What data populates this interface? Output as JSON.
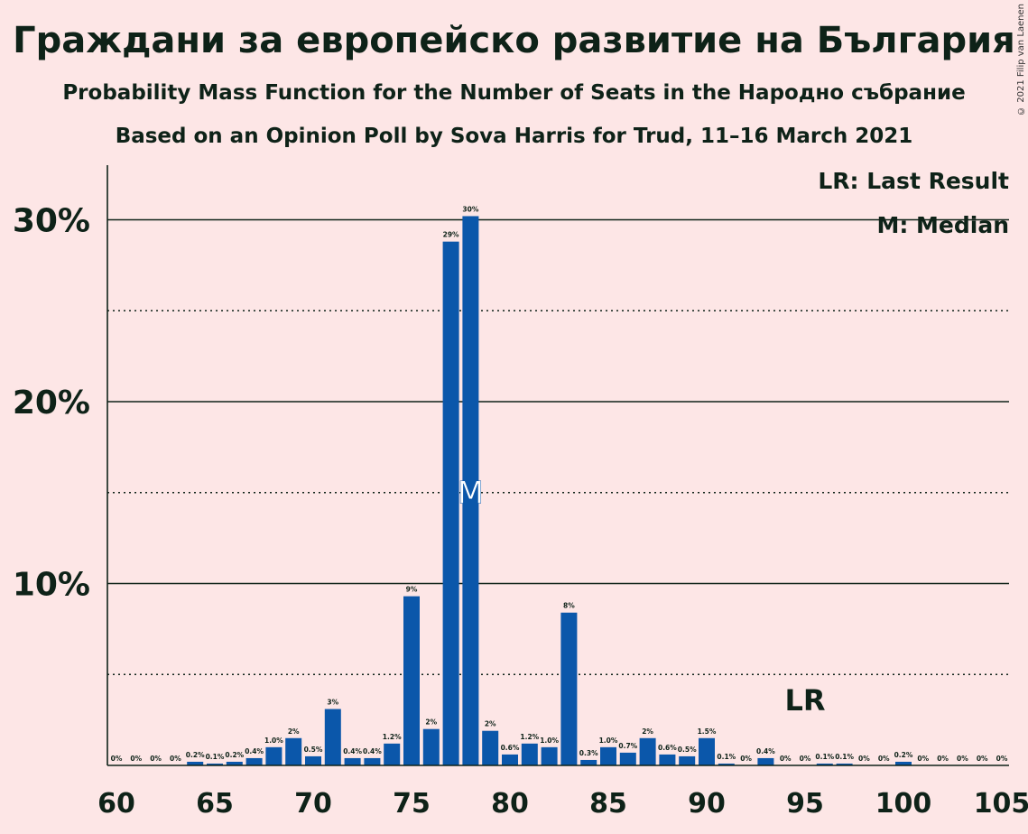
{
  "title": "Граждани за европейско развитие на България",
  "subtitle": "Probability Mass Function for the Number of Seats in the Народно събрание",
  "subtitle2": "Based on an Opinion Poll by Sova Harris for Trud, 11–16 March 2021",
  "copyright": "© 2021 Filip van Laenen",
  "legend": {
    "last_result": "LR: Last Result",
    "median": "M: Median"
  },
  "colors": {
    "bar": "#0b57aa",
    "background": "#fde6e6",
    "text": "#0e2218"
  },
  "chart_data": {
    "type": "bar",
    "title": "Граждани за европейско развитие на България",
    "xlabel": "",
    "ylabel": "",
    "xlim": [
      60,
      105
    ],
    "ylim": [
      0,
      33
    ],
    "x_ticks": [
      60,
      65,
      70,
      75,
      80,
      85,
      90,
      95,
      100,
      105
    ],
    "y_ticks": [
      {
        "value": 10,
        "label": "10%"
      },
      {
        "value": 20,
        "label": "20%"
      },
      {
        "value": 30,
        "label": "30%"
      }
    ],
    "minor_y_gridlines": [
      5,
      15,
      25
    ],
    "median_seat": 78,
    "median_marker": "M",
    "last_result_seat": 95,
    "last_result_marker": "LR",
    "bars": [
      {
        "x": 60,
        "value": 0,
        "label": "0%"
      },
      {
        "x": 61,
        "value": 0,
        "label": "0%"
      },
      {
        "x": 62,
        "value": 0,
        "label": "0%"
      },
      {
        "x": 63,
        "value": 0,
        "label": "0%"
      },
      {
        "x": 64,
        "value": 0.2,
        "label": "0.2%"
      },
      {
        "x": 65,
        "value": 0.1,
        "label": "0.1%"
      },
      {
        "x": 66,
        "value": 0.2,
        "label": "0.2%"
      },
      {
        "x": 67,
        "value": 0.4,
        "label": "0.4%"
      },
      {
        "x": 68,
        "value": 1.0,
        "label": "1.0%"
      },
      {
        "x": 69,
        "value": 1.5,
        "label": "2%"
      },
      {
        "x": 70,
        "value": 0.5,
        "label": "0.5%"
      },
      {
        "x": 71,
        "value": 3.1,
        "label": "3%"
      },
      {
        "x": 72,
        "value": 0.4,
        "label": "0.4%"
      },
      {
        "x": 73,
        "value": 0.4,
        "label": "0.4%"
      },
      {
        "x": 74,
        "value": 1.2,
        "label": "1.2%"
      },
      {
        "x": 75,
        "value": 9.3,
        "label": "9%"
      },
      {
        "x": 76,
        "value": 2.0,
        "label": "2%"
      },
      {
        "x": 77,
        "value": 28.8,
        "label": "29%"
      },
      {
        "x": 78,
        "value": 30.2,
        "label": "30%"
      },
      {
        "x": 79,
        "value": 1.9,
        "label": "2%"
      },
      {
        "x": 80,
        "value": 0.6,
        "label": "0.6%"
      },
      {
        "x": 81,
        "value": 1.2,
        "label": "1.2%"
      },
      {
        "x": 82,
        "value": 1.0,
        "label": "1.0%"
      },
      {
        "x": 83,
        "value": 8.4,
        "label": "8%"
      },
      {
        "x": 84,
        "value": 0.3,
        "label": "0.3%"
      },
      {
        "x": 85,
        "value": 1.0,
        "label": "1.0%"
      },
      {
        "x": 86,
        "value": 0.7,
        "label": "0.7%"
      },
      {
        "x": 87,
        "value": 1.5,
        "label": "2%"
      },
      {
        "x": 88,
        "value": 0.6,
        "label": "0.6%"
      },
      {
        "x": 89,
        "value": 0.5,
        "label": "0.5%"
      },
      {
        "x": 90,
        "value": 1.5,
        "label": "1.5%"
      },
      {
        "x": 91,
        "value": 0.1,
        "label": "0.1%"
      },
      {
        "x": 92,
        "value": 0,
        "label": "0%"
      },
      {
        "x": 93,
        "value": 0.4,
        "label": "0.4%"
      },
      {
        "x": 94,
        "value": 0,
        "label": "0%"
      },
      {
        "x": 95,
        "value": 0,
        "label": "0%"
      },
      {
        "x": 96,
        "value": 0.1,
        "label": "0.1%"
      },
      {
        "x": 97,
        "value": 0.1,
        "label": "0.1%"
      },
      {
        "x": 98,
        "value": 0,
        "label": "0%"
      },
      {
        "x": 99,
        "value": 0,
        "label": "0%"
      },
      {
        "x": 100,
        "value": 0.2,
        "label": "0.2%"
      },
      {
        "x": 101,
        "value": 0,
        "label": "0%"
      },
      {
        "x": 102,
        "value": 0,
        "label": "0%"
      },
      {
        "x": 103,
        "value": 0,
        "label": "0%"
      },
      {
        "x": 104,
        "value": 0,
        "label": "0%"
      },
      {
        "x": 105,
        "value": 0,
        "label": "0%"
      }
    ]
  }
}
